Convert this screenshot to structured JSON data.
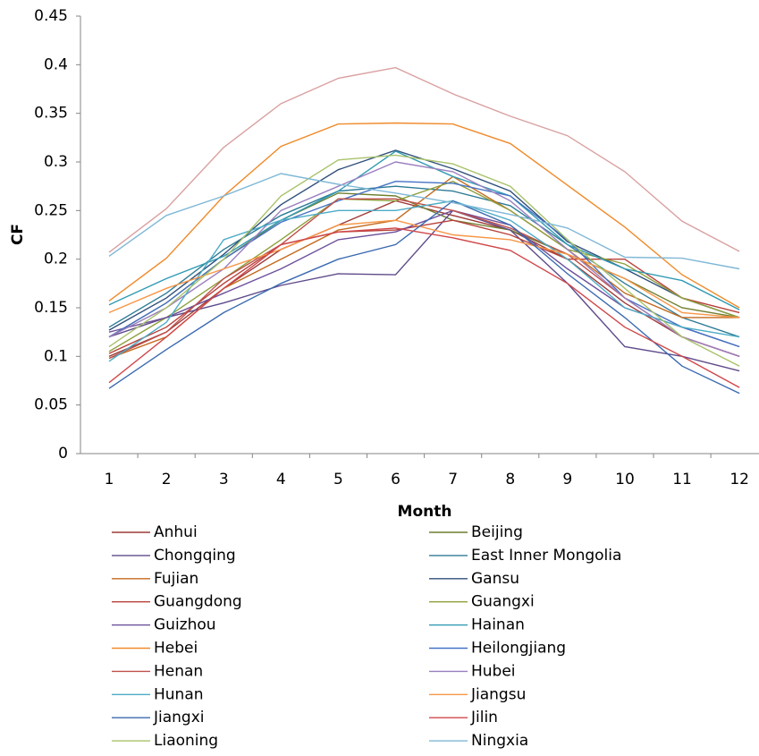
{
  "chart_data": {
    "type": "line",
    "y_label": "CF",
    "x_label": "Month",
    "categories": [
      "1",
      "2",
      "3",
      "4",
      "5",
      "6",
      "7",
      "8",
      "9",
      "10",
      "11",
      "12"
    ],
    "ylim": [
      0,
      0.45
    ],
    "yticks": [
      0,
      0.05,
      0.1,
      0.15,
      0.2,
      0.25,
      0.3,
      0.35,
      0.4,
      0.45
    ],
    "series": [
      {
        "name": "Anhui",
        "color": "#9e3b38",
        "values": [
          0.1,
          0.125,
          0.17,
          0.21,
          0.235,
          0.26,
          0.245,
          0.23,
          0.2,
          0.155,
          0.12,
          0.1
        ]
      },
      {
        "name": "Beijing",
        "color": "#6f7f2f",
        "values": [
          0.12,
          0.155,
          0.2,
          0.24,
          0.268,
          0.265,
          0.24,
          0.23,
          0.205,
          0.18,
          0.15,
          0.14
        ]
      },
      {
        "name": "Chongqing",
        "color": "#5f4b8b",
        "values": [
          0.12,
          0.14,
          0.155,
          0.173,
          0.185,
          0.184,
          0.25,
          0.23,
          0.175,
          0.11,
          0.1,
          0.085
        ]
      },
      {
        "name": "East Inner Mongolia",
        "color": "#2e7c96",
        "values": [
          0.13,
          0.165,
          0.21,
          0.245,
          0.27,
          0.275,
          0.27,
          0.255,
          0.215,
          0.175,
          0.14,
          0.12
        ]
      },
      {
        "name": "Fujian",
        "color": "#c46a1e",
        "values": [
          0.098,
          0.12,
          0.17,
          0.2,
          0.23,
          0.24,
          0.285,
          0.25,
          0.21,
          0.165,
          0.14,
          0.14
        ]
      },
      {
        "name": "Gansu",
        "color": "#2f4f7a",
        "values": [
          0.127,
          0.16,
          0.205,
          0.256,
          0.292,
          0.312,
          0.293,
          0.27,
          0.218,
          0.19,
          0.16,
          0.14
        ]
      },
      {
        "name": "Guangdong",
        "color": "#b8413b",
        "values": [
          0.103,
          0.13,
          0.175,
          0.215,
          0.228,
          0.23,
          0.24,
          0.225,
          0.2,
          0.2,
          0.16,
          0.145
        ]
      },
      {
        "name": "Guangxi",
        "color": "#8ea03c",
        "values": [
          0.105,
          0.14,
          0.18,
          0.22,
          0.262,
          0.26,
          0.28,
          0.25,
          0.21,
          0.195,
          0.16,
          0.14
        ]
      },
      {
        "name": "Guizhou",
        "color": "#6c4f9a",
        "values": [
          0.125,
          0.14,
          0.165,
          0.19,
          0.22,
          0.228,
          0.25,
          0.235,
          0.19,
          0.15,
          0.13,
          0.11
        ]
      },
      {
        "name": "Hainan",
        "color": "#2f9ab3",
        "values": [
          0.153,
          0.18,
          0.203,
          0.24,
          0.27,
          0.311,
          0.285,
          0.265,
          0.215,
          0.19,
          0.178,
          0.148
        ]
      },
      {
        "name": "Hebei",
        "color": "#f08a2a",
        "values": [
          0.157,
          0.201,
          0.265,
          0.316,
          0.339,
          0.34,
          0.339,
          0.319,
          0.276,
          0.233,
          0.184,
          0.15
        ]
      },
      {
        "name": "Heilongjiang",
        "color": "#4572c4",
        "values": [
          0.12,
          0.155,
          0.2,
          0.238,
          0.26,
          0.28,
          0.278,
          0.265,
          0.22,
          0.16,
          0.13,
          0.11
        ]
      },
      {
        "name": "Henan",
        "color": "#c0504d",
        "values": [
          0.098,
          0.125,
          0.18,
          0.215,
          0.262,
          0.262,
          0.25,
          0.232,
          0.205,
          0.16,
          0.12,
          0.1
        ]
      },
      {
        "name": "Hubei",
        "color": "#9b7fbf",
        "values": [
          0.12,
          0.15,
          0.19,
          0.25,
          0.275,
          0.3,
          0.29,
          0.26,
          0.21,
          0.16,
          0.12,
          0.1
        ]
      },
      {
        "name": "Hunan",
        "color": "#4bacc6",
        "values": [
          0.095,
          0.135,
          0.22,
          0.24,
          0.25,
          0.25,
          0.26,
          0.24,
          0.2,
          0.15,
          0.13,
          0.12
        ]
      },
      {
        "name": "Jiangsu",
        "color": "#f79646",
        "values": [
          0.145,
          0.17,
          0.19,
          0.21,
          0.235,
          0.24,
          0.225,
          0.22,
          0.205,
          0.18,
          0.145,
          0.14
        ]
      },
      {
        "name": "Jiangxi",
        "color": "#3a6ab0",
        "values": [
          0.067,
          0.107,
          0.145,
          0.175,
          0.2,
          0.215,
          0.26,
          0.235,
          0.185,
          0.14,
          0.09,
          0.062
        ]
      },
      {
        "name": "Jilin",
        "color": "#d0474a",
        "values": [
          0.073,
          0.12,
          0.17,
          0.215,
          0.228,
          0.232,
          0.222,
          0.209,
          0.175,
          0.13,
          0.1,
          0.068
        ]
      },
      {
        "name": "Liaoning",
        "color": "#a9c26a",
        "values": [
          0.11,
          0.15,
          0.2,
          0.265,
          0.302,
          0.307,
          0.298,
          0.275,
          0.22,
          0.17,
          0.12,
          0.09
        ]
      },
      {
        "name": "Ningxia",
        "color": "#7fb8d6",
        "values": [
          0.203,
          0.245,
          0.265,
          0.288,
          0.277,
          0.268,
          0.258,
          0.246,
          0.232,
          0.202,
          0.201,
          0.19
        ]
      },
      {
        "color": "#d9a0a0",
        "values": [
          0.207,
          0.252,
          0.315,
          0.36,
          0.386,
          0.397,
          0.37,
          0.347,
          0.327,
          0.29,
          0.239,
          0.208
        ]
      }
    ]
  }
}
